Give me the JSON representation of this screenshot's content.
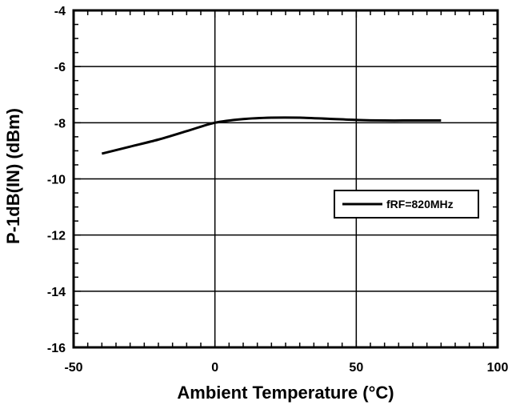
{
  "chart_data": {
    "type": "line",
    "title": "",
    "xlabel": "Ambient Temperature (°C)",
    "ylabel": "P-1dB(IN) (dBm)",
    "xlim": [
      -50,
      100
    ],
    "ylim": [
      -16,
      -4
    ],
    "x_ticks": [
      -50,
      0,
      50,
      100
    ],
    "y_ticks": [
      -4,
      -6,
      -8,
      -10,
      -12,
      -14,
      -16
    ],
    "x_tick_labels": [
      "-50",
      "0",
      "50",
      "100"
    ],
    "y_tick_labels": [
      "-4",
      "-6",
      "-8",
      "-10",
      "-12",
      "-14",
      "-16"
    ],
    "grid": true,
    "legend_position": "right",
    "series": [
      {
        "name": "fRF=820MHz",
        "color": "#000000",
        "x": [
          -40,
          -30,
          -20,
          -10,
          0,
          10,
          20,
          30,
          40,
          50,
          60,
          70,
          80
        ],
        "y": [
          -9.1,
          -8.85,
          -8.6,
          -8.3,
          -8.0,
          -7.87,
          -7.82,
          -7.82,
          -7.86,
          -7.9,
          -7.92,
          -7.92,
          -7.92
        ]
      }
    ]
  }
}
